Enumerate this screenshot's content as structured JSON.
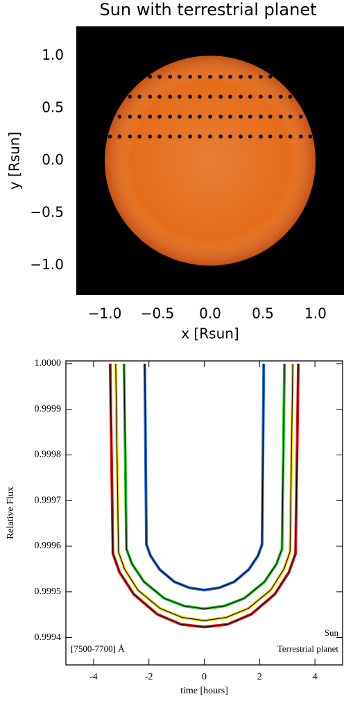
{
  "chart_data": [
    {
      "type": "scatter",
      "title": "Sun with terrestrial planet",
      "x_label": "x [Rsun]",
      "y_label": "y [Rsun]",
      "xlim": [
        -1.27,
        1.27
      ],
      "ylim": [
        -1.28,
        1.28
      ],
      "xticks": [
        {
          "value": -1,
          "label": "−1.0"
        },
        {
          "value": -0.5,
          "label": "−0.5"
        },
        {
          "value": 0,
          "label": "0.0"
        },
        {
          "value": 0.5,
          "label": "0.5"
        },
        {
          "value": 1,
          "label": "1.0"
        }
      ],
      "yticks": [
        {
          "value": -1,
          "label": "−1.0"
        },
        {
          "value": -0.5,
          "label": "−0.5"
        },
        {
          "value": 0,
          "label": "0.0"
        },
        {
          "value": 0.5,
          "label": "0.5"
        },
        {
          "value": 1,
          "label": "1.0"
        }
      ],
      "background_color": "#000000",
      "disk_color": "#ee6a20",
      "series": [
        {
          "color": "#000000",
          "x": [
            -0.95,
            -0.86,
            -0.76,
            -0.67,
            -0.57,
            -0.48,
            -0.38,
            -0.29,
            -0.19,
            -0.1,
            0,
            0.1,
            0.19,
            0.29,
            0.38,
            0.48,
            0.57,
            0.67,
            0.76,
            0.86,
            0.95
          ],
          "y": [
            0.23,
            0.23,
            0.23,
            0.23,
            0.23,
            0.23,
            0.23,
            0.23,
            0.23,
            0.23,
            0.23,
            0.23,
            0.23,
            0.23,
            0.23,
            0.23,
            0.23,
            0.23,
            0.23,
            0.23,
            0.23
          ]
        },
        {
          "color": "#000000",
          "x": [
            -0.86,
            -0.76,
            -0.67,
            -0.57,
            -0.48,
            -0.38,
            -0.29,
            -0.19,
            -0.1,
            0,
            0.1,
            0.19,
            0.29,
            0.38,
            0.48,
            0.57,
            0.67,
            0.76,
            0.86
          ],
          "y": [
            0.42,
            0.42,
            0.42,
            0.42,
            0.42,
            0.42,
            0.42,
            0.42,
            0.42,
            0.42,
            0.42,
            0.42,
            0.42,
            0.42,
            0.42,
            0.42,
            0.42,
            0.42,
            0.42
          ]
        },
        {
          "color": "#000000",
          "x": [
            -0.76,
            -0.67,
            -0.57,
            -0.48,
            -0.38,
            -0.29,
            -0.19,
            -0.1,
            0,
            0.1,
            0.19,
            0.29,
            0.38,
            0.48,
            0.57,
            0.67,
            0.76
          ],
          "y": [
            0.61,
            0.61,
            0.61,
            0.61,
            0.61,
            0.61,
            0.61,
            0.61,
            0.61,
            0.61,
            0.61,
            0.61,
            0.61,
            0.61,
            0.61,
            0.61,
            0.61
          ]
        },
        {
          "color": "#000000",
          "x": [
            -0.57,
            -0.48,
            -0.38,
            -0.29,
            -0.19,
            -0.1,
            0,
            0.1,
            0.19,
            0.29,
            0.38,
            0.48,
            0.57
          ],
          "y": [
            0.8,
            0.8,
            0.8,
            0.8,
            0.8,
            0.8,
            0.8,
            0.8,
            0.8,
            0.8,
            0.8,
            0.8,
            0.8
          ]
        }
      ]
    },
    {
      "type": "line",
      "x_label": "time [hours]",
      "y_label": "Relative Flux",
      "xlim": [
        -5,
        5
      ],
      "ylim": [
        0.99934,
        1.000006
      ],
      "xticks": [
        -4,
        -2,
        0,
        2,
        4
      ],
      "yticks": [
        {
          "value": 1,
          "label": "1.0000"
        },
        0.9999,
        0.9998,
        0.9997,
        0.9996,
        0.9995,
        0.9994
      ],
      "annotations": [
        "[7500-7700] Å",
        "Sun",
        "Terrestrial planet"
      ],
      "series": [
        {
          "color": "#e01818",
          "x": [
            -3.4,
            -3.3,
            -3.06,
            -2.55,
            -1.7,
            -0.85,
            0,
            0.85,
            1.7,
            2.55,
            3.06,
            3.3,
            3.4
          ],
          "values": [
            1,
            0.999584,
            0.999543,
            0.999495,
            0.999451,
            0.999429,
            0.999423,
            0.999429,
            0.999451,
            0.999495,
            0.999543,
            0.999584,
            1
          ]
        },
        {
          "color": "#f0d000",
          "x": [
            -3.2,
            -3.1,
            -2.88,
            -2.4,
            -1.6,
            -0.8,
            0,
            0.8,
            1.6,
            2.4,
            2.88,
            3.1,
            3.2
          ],
          "values": [
            1,
            0.999588,
            0.99955,
            0.999504,
            0.999464,
            0.999444,
            0.999437,
            0.999444,
            0.999464,
            0.999504,
            0.99955,
            0.999588,
            1
          ]
        },
        {
          "color": "#22c822",
          "x": [
            -2.9,
            -2.81,
            -2.61,
            -2.175,
            -1.45,
            -0.725,
            0,
            0.725,
            1.45,
            2.175,
            2.61,
            2.81,
            2.9
          ],
          "values": [
            1,
            0.999594,
            0.999561,
            0.999522,
            0.999486,
            0.999469,
            0.999463,
            0.999469,
            0.999486,
            0.999522,
            0.999561,
            0.999594,
            1
          ]
        },
        {
          "color": "#2266dd",
          "x": [
            -2.15,
            -2.09,
            -1.94,
            -1.61,
            -1.08,
            -0.54,
            0,
            0.54,
            1.08,
            1.61,
            1.94,
            2.09,
            2.15
          ],
          "values": [
            1,
            0.999604,
            0.999579,
            0.999549,
            0.999522,
            0.999509,
            0.999504,
            0.999509,
            0.999522,
            0.999549,
            0.999579,
            0.999604,
            1
          ]
        }
      ]
    }
  ]
}
